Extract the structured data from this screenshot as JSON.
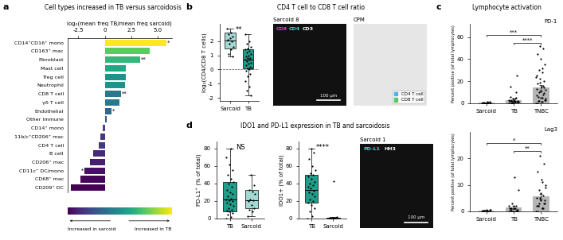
{
  "panel_labels": [
    "a",
    "b",
    "c",
    "d"
  ],
  "panel_titles": {
    "b": "CD4 T cell to CD8 T cell ratio",
    "c": "Lymphocyte activation",
    "d": "IDO1 and PD-L1 expression in TB and sarcoidosis"
  },
  "chart_data": [
    {
      "type": "bar",
      "orientation": "horizontal",
      "title": "Cell types increased in TB versus sarcoidosis",
      "xlabel": "log₂(mean freq TB/mean freq sarcoid)",
      "categories": [
        "CD14⁺CD16⁺ mono",
        "CD163⁺ mac",
        "Fibroblast",
        "Mast cell",
        "Treg cell",
        "Neutrophil",
        "CD8 T cell",
        "γδ T cell",
        "Endothelial",
        "Other immune",
        "CD14⁺ mono",
        "11b/c⁺CD206⁺ mac",
        "CD4 T cell",
        "B cell",
        "CD206⁺ mac",
        "CD11c⁺ DC/mono",
        "CD68⁺ mac",
        "CD209⁺ DC"
      ],
      "values": [
        5.8,
        4.2,
        3.3,
        2.0,
        2.0,
        1.9,
        1.5,
        1.4,
        0.6,
        0.2,
        -0.2,
        -0.4,
        -0.6,
        -1.1,
        -1.4,
        -1.9,
        -2.3,
        -3.2
      ],
      "colors": [
        "#fde725",
        "#5ec962",
        "#35b779",
        "#22a884",
        "#21918c",
        "#21918c",
        "#2a788e",
        "#2a788e",
        "#31688e",
        "#3b528b",
        "#414487",
        "#443983",
        "#443983",
        "#482878",
        "#481f70",
        "#471063",
        "#46075a",
        "#440154"
      ],
      "significance": [
        "*",
        null,
        "**",
        null,
        null,
        null,
        "**",
        null,
        "*",
        null,
        null,
        null,
        null,
        null,
        null,
        "*",
        null,
        null
      ],
      "xlim": [
        -3.5,
        6.3
      ],
      "xticks": [
        -2.5,
        0,
        2.5,
        5.0
      ],
      "annotations": [
        "Increased in sarcoid",
        "Increased in TB"
      ]
    },
    {
      "type": "box",
      "ylabel": "log₂(CD4/CD8 T cells)",
      "categories": [
        "Sarcoid",
        "TB"
      ],
      "box_stats": [
        {
          "whislo": 0.9,
          "q1": 1.5,
          "med": 2.05,
          "q3": 2.6,
          "whishi": 2.9
        },
        {
          "whislo": -1.8,
          "q1": 0.1,
          "med": 0.7,
          "q3": 1.4,
          "whishi": 2.5
        }
      ],
      "points": [
        [
          2.9,
          2.6,
          2.5,
          2.3,
          2.2,
          2.1,
          2.0,
          1.8,
          1.6,
          1.4,
          1.1,
          0.9
        ],
        [
          2.5,
          2.0,
          1.8,
          1.6,
          1.5,
          1.4,
          1.3,
          1.2,
          1.1,
          1.0,
          0.9,
          0.8,
          0.8,
          0.7,
          0.7,
          0.6,
          0.5,
          0.4,
          0.3,
          0.2,
          0.1,
          0.1,
          0.0,
          -0.1,
          -0.3,
          -0.5,
          -0.8,
          -1.2,
          -1.5,
          -1.8
        ]
      ],
      "colors": [
        "#a3d9d3",
        "#1f9e89"
      ],
      "hline": 0,
      "significance": "**",
      "ylim": [
        -2.2,
        3.2
      ],
      "yticks": [
        -2,
        -1,
        0,
        1,
        2
      ]
    },
    {
      "type": "bar",
      "title": "PD-1",
      "ylabel": "Percent positive (of total lymphocytes)",
      "categories": [
        "Sarcoid",
        "TB",
        "TNBC"
      ],
      "values": [
        0.5,
        3,
        14
      ],
      "errors": [
        0.2,
        1,
        2.5
      ],
      "color": "#b5b5b5",
      "points": [
        [
          0,
          0,
          0.5,
          1,
          0,
          0.3,
          0.8,
          0.2,
          0,
          1.2,
          0.1,
          0.4
        ],
        [
          0,
          1,
          2,
          1,
          3,
          2,
          5,
          0.5,
          1,
          2,
          15,
          25,
          4,
          3,
          1,
          0,
          2,
          1,
          6,
          10,
          0.5,
          1,
          2,
          3,
          1,
          0,
          2,
          4
        ],
        [
          0,
          1,
          2,
          3,
          5,
          7,
          8,
          10,
          12,
          15,
          18,
          20,
          22,
          25,
          28,
          30,
          35,
          40,
          45,
          50,
          52,
          3,
          5,
          6,
          9,
          11,
          13,
          16,
          2,
          4,
          1,
          0,
          14,
          19,
          24,
          32
        ]
      ],
      "significance": [
        {
          "from": "TB",
          "to": "TNBC",
          "text": "****"
        },
        {
          "from": "Sarcoid",
          "to": "TNBC",
          "text": "***"
        }
      ],
      "ylim": [
        0,
        72
      ],
      "yticks": [
        0,
        20,
        40,
        60
      ]
    },
    {
      "type": "bar",
      "title": "Lag3",
      "ylabel": "Percent positive (of total lymphocytes)",
      "categories": [
        "Sarcoid",
        "TB",
        "TNBC"
      ],
      "values": [
        0.2,
        1.3,
        5.5
      ],
      "errors": [
        0.1,
        0.6,
        1.2
      ],
      "color": "#b5b5b5",
      "points": [
        [
          0,
          0.2,
          0.1,
          0,
          0.5,
          0.3,
          0,
          0.1,
          0.4,
          0,
          0.2,
          0.6
        ],
        [
          0,
          0,
          1,
          0.5,
          2,
          1,
          0,
          3,
          8,
          13,
          1,
          0.5,
          0,
          2,
          1,
          0.3,
          0,
          1,
          0.5,
          2
        ],
        [
          0,
          1,
          2,
          3,
          4,
          5,
          6,
          8,
          10,
          12,
          15,
          18,
          21,
          2,
          1,
          3,
          4,
          7,
          0,
          1,
          5,
          9,
          11,
          2,
          3
        ]
      ],
      "significance": [
        {
          "from": "TB",
          "to": "TNBC",
          "text": "**"
        },
        {
          "from": "Sarcoid",
          "to": "TNBC",
          "text": "*"
        }
      ],
      "ylim": [
        0,
        30
      ],
      "yticks": [
        0,
        10,
        20
      ]
    },
    {
      "type": "box",
      "ylabel": "PD-L1⁺ (% of total)",
      "categories": [
        "TB",
        "Sarcoid"
      ],
      "box_stats": [
        {
          "whislo": 0,
          "q1": 8,
          "med": 22,
          "q3": 42,
          "whishi": 80
        },
        {
          "whislo": 3,
          "q1": 12,
          "med": 21,
          "q3": 33,
          "whishi": 50
        }
      ],
      "points": [
        [
          0,
          2,
          4,
          6,
          8,
          9,
          10,
          12,
          14,
          16,
          18,
          20,
          21,
          22,
          23,
          25,
          28,
          30,
          33,
          36,
          40,
          42,
          45,
          50,
          55,
          62,
          70,
          80
        ],
        [
          3,
          8,
          10,
          12,
          15,
          20,
          21,
          22,
          28,
          31,
          33,
          38,
          50
        ]
      ],
      "colors": [
        "#1f9e89",
        "#a3d9d3"
      ],
      "significance": "NS",
      "ylim": [
        0,
        88
      ],
      "yticks": [
        0,
        20,
        40,
        60,
        80
      ]
    },
    {
      "type": "box",
      "ylabel": "IDO1+ (% of total)",
      "categories": [
        "TB",
        "Sarcoid"
      ],
      "box_stats": [
        {
          "whislo": 0,
          "q1": 18,
          "med": 33,
          "q3": 50,
          "whishi": 80
        },
        {
          "whislo": 0,
          "q1": 0,
          "med": 0.5,
          "q3": 1,
          "whishi": 2
        }
      ],
      "points": [
        [
          0,
          3,
          8,
          12,
          15,
          18,
          20,
          22,
          25,
          28,
          30,
          32,
          34,
          36,
          38,
          40,
          42,
          45,
          48,
          50,
          52,
          55,
          60,
          68,
          75,
          80
        ],
        [
          0,
          0,
          0,
          0.5,
          0.5,
          1,
          1,
          0.5,
          2,
          43
        ]
      ],
      "colors": [
        "#1f9e89",
        "#a3d9d3"
      ],
      "significance": "****",
      "ylim": [
        0,
        88
      ],
      "yticks": [
        0,
        20,
        40,
        60,
        80
      ]
    }
  ],
  "images": [
    {
      "title": "Sarcoid 8",
      "channels": [
        {
          "text": "CD8",
          "color": "#e040c0"
        },
        {
          "text": "CD4",
          "color": "#40e0d0"
        },
        {
          "text": "CD3",
          "color": "#ffffff"
        }
      ],
      "scale_bar": "100 µm"
    },
    {
      "title": "CPM",
      "legend": "lower right",
      "series": [
        {
          "name": "CD4 T cell",
          "color": "#4fb3e8"
        },
        {
          "name": "CD8 T cell",
          "color": "#5ec962"
        }
      ]
    },
    {
      "title": "Sarcoid 1",
      "channels": [
        {
          "text": "PD-L1",
          "color": "#40e0d0"
        },
        {
          "text": "HH3",
          "color": "#ffffff"
        }
      ],
      "scale_bar": "100 µm"
    }
  ]
}
